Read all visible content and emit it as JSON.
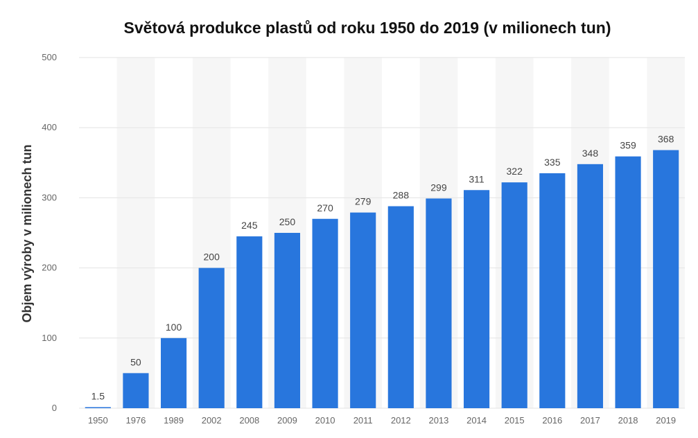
{
  "chart_data": {
    "type": "bar",
    "title": "Světová produkce plastů od roku 1950 do 2019 (v milionech tun)",
    "xlabel": "",
    "ylabel": "Objem výroby v milionech tun",
    "categories": [
      "1950",
      "1976",
      "1989",
      "2002",
      "2008",
      "2009",
      "2010",
      "2011",
      "2012",
      "2013",
      "2014",
      "2015",
      "2016",
      "2017",
      "2018",
      "2019"
    ],
    "values": [
      1.5,
      50,
      100,
      200,
      245,
      250,
      270,
      279,
      288,
      299,
      311,
      322,
      335,
      348,
      359,
      368
    ],
    "value_labels": [
      "1.5",
      "50",
      "100",
      "200",
      "245",
      "250",
      "270",
      "279",
      "288",
      "299",
      "311",
      "322",
      "335",
      "348",
      "359",
      "368"
    ],
    "ylim": [
      0,
      500
    ],
    "yticks": [
      0,
      100,
      200,
      300,
      400,
      500
    ],
    "grid": true,
    "colors": {
      "bar": "#2876dd",
      "grid": "#e3e3e3",
      "band": "#f6f6f6"
    }
  }
}
